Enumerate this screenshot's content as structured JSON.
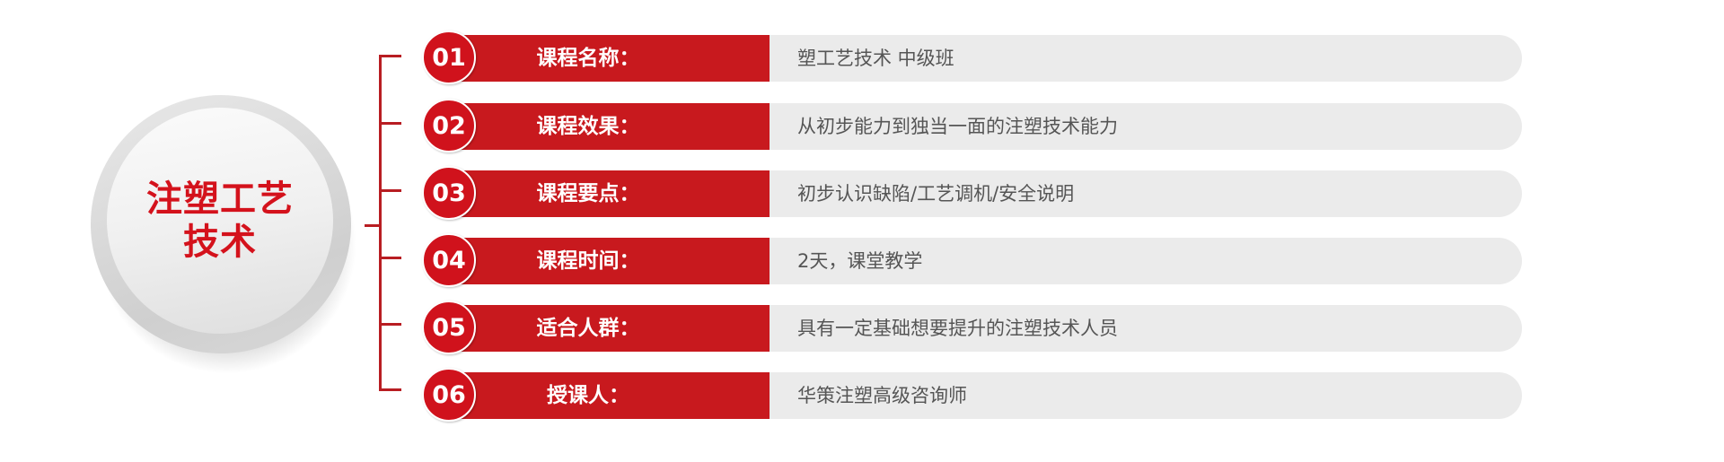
{
  "hub": {
    "lines": [
      "注塑工艺",
      "技术"
    ]
  },
  "colors": {
    "accent_red": "#c8191e",
    "row_gray": "#ebebeb",
    "hub_text": "#d4121c"
  },
  "rows": [
    {
      "num": "01",
      "label": "课程名称：",
      "value": "塑工艺技术 中级班"
    },
    {
      "num": "02",
      "label": "课程效果：",
      "value": "从初步能力到独当一面的注塑技术能力"
    },
    {
      "num": "03",
      "label": "课程要点：",
      "value": "初步认识缺陷/工艺调机/安全说明"
    },
    {
      "num": "04",
      "label": "课程时间：",
      "value": "2天，课堂教学"
    },
    {
      "num": "05",
      "label": "适合人群：",
      "value": "具有一定基础想要提升的注塑技术人员"
    },
    {
      "num": "06",
      "label": "授课人：",
      "value": "华策注塑高级咨询师"
    }
  ]
}
